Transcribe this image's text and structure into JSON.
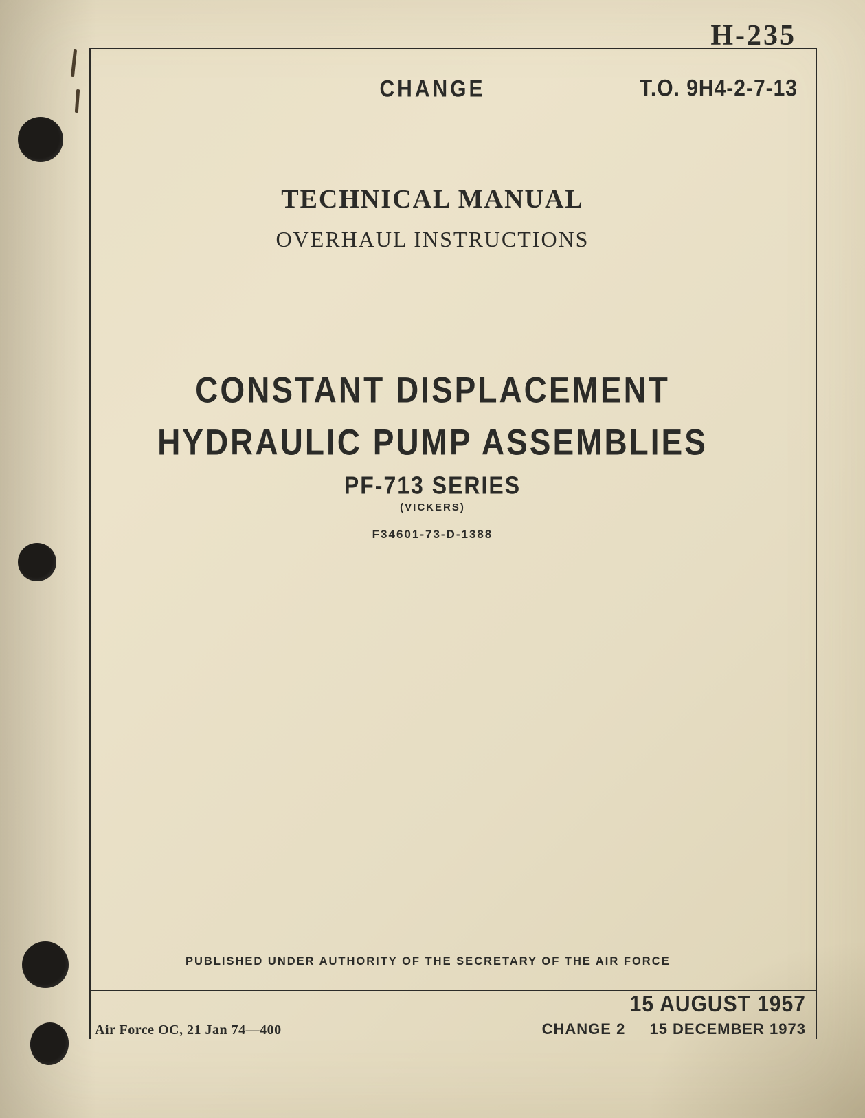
{
  "colors": {
    "paper_bg_start": "#e8dfc5",
    "paper_bg_mid": "#ece3ca",
    "paper_bg_end": "#ddd3b5",
    "ink": "#2b2b28",
    "hole": "#1d1b18"
  },
  "typography": {
    "serif_family": "Times New Roman",
    "sans_family": "Arial",
    "header_fontsize_pt": 30,
    "tm_fontsize_pt": 38,
    "sub_fontsize_pt": 32,
    "title_fontsize_pt": 46,
    "series_fontsize_pt": 32,
    "mfr_fontsize_pt": 15,
    "contract_fontsize_pt": 17,
    "authority_fontsize_pt": 16.5,
    "date_orig_fontsize_pt": 30,
    "date_change_fontsize_pt": 22,
    "footer_left_fontsize_pt": 20,
    "hand_fontsize_pt": 42
  },
  "hand_stamp": "H-235",
  "header": {
    "change_label": "CHANGE",
    "to_number": "T.O. 9H4-2-7-13"
  },
  "heading": {
    "technical_manual": "TECHNICAL MANUAL",
    "subtitle": "OVERHAUL INSTRUCTIONS"
  },
  "title": {
    "line1": "CONSTANT DISPLACEMENT",
    "line2": "HYDRAULIC PUMP ASSEMBLIES",
    "series": "PF-713 SERIES",
    "manufacturer": "(VICKERS)",
    "contract": "F34601-73-D-1388"
  },
  "authority": "PUBLISHED UNDER AUTHORITY OF THE SECRETARY OF THE AIR FORCE",
  "dates": {
    "original": "15 AUGUST 1957",
    "change_label": "CHANGE 2",
    "change_date": "15 DECEMBER 1973"
  },
  "footer_left": "Air Force OC, 21 Jan 74—400"
}
